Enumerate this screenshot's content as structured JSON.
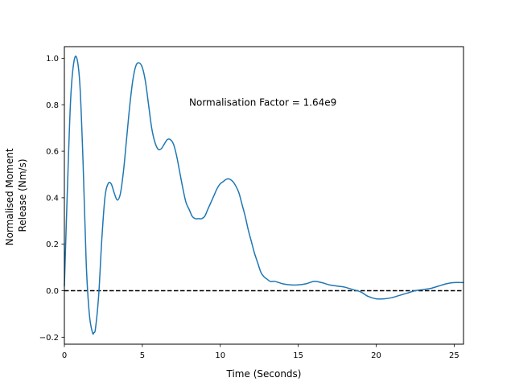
{
  "chart_data": {
    "type": "line",
    "title": "",
    "xlabel": "Time (Seconds)",
    "ylabel_lines": [
      "Normalised Moment",
      "Release (Nm/s)"
    ],
    "xlim": [
      0,
      25.6
    ],
    "ylim": [
      -0.23,
      1.05
    ],
    "xticks": [
      0,
      5,
      10,
      15,
      20,
      25
    ],
    "yticks": [
      -0.2,
      0.0,
      0.2,
      0.4,
      0.6,
      0.8,
      1.0
    ],
    "grid": false,
    "annotation": {
      "text": "Normalisation Factor = 1.64e9",
      "x": 8.0,
      "y": 0.81
    },
    "reference_line": {
      "y": 0.0,
      "style": "dashed",
      "color": "#000000"
    },
    "series": [
      {
        "color": "#1f77b4",
        "x": [
          0,
          0.2,
          0.4,
          0.6,
          0.8,
          1.0,
          1.2,
          1.4,
          1.6,
          1.8,
          1.9,
          2.0,
          2.2,
          2.4,
          2.6,
          2.8,
          3.0,
          3.2,
          3.4,
          3.6,
          3.8,
          4.0,
          4.2,
          4.4,
          4.6,
          4.8,
          5.0,
          5.2,
          5.4,
          5.6,
          5.8,
          6.0,
          6.2,
          6.4,
          6.6,
          6.8,
          7.0,
          7.2,
          7.4,
          7.6,
          7.8,
          8.0,
          8.2,
          8.4,
          8.6,
          8.8,
          9.0,
          9.2,
          9.4,
          9.6,
          9.8,
          10.0,
          10.2,
          10.4,
          10.6,
          10.8,
          11.0,
          11.2,
          11.4,
          11.6,
          11.8,
          12.0,
          12.2,
          12.4,
          12.6,
          12.8,
          13.0,
          13.2,
          13.5,
          14.0,
          14.5,
          15.0,
          15.5,
          16.0,
          16.5,
          17.0,
          17.5,
          18.0,
          18.5,
          19.0,
          19.5,
          20.0,
          20.5,
          21.0,
          21.5,
          22.0,
          22.5,
          23.0,
          23.5,
          24.0,
          24.5,
          25.0,
          25.6
        ],
        "y": [
          0.02,
          0.45,
          0.82,
          0.98,
          1.0,
          0.88,
          0.55,
          0.12,
          -0.1,
          -0.18,
          -0.18,
          -0.16,
          -0.02,
          0.22,
          0.4,
          0.46,
          0.46,
          0.42,
          0.39,
          0.42,
          0.52,
          0.66,
          0.8,
          0.91,
          0.97,
          0.98,
          0.96,
          0.9,
          0.8,
          0.7,
          0.64,
          0.61,
          0.61,
          0.63,
          0.65,
          0.65,
          0.63,
          0.58,
          0.51,
          0.44,
          0.38,
          0.35,
          0.32,
          0.31,
          0.31,
          0.31,
          0.32,
          0.35,
          0.38,
          0.41,
          0.44,
          0.46,
          0.47,
          0.48,
          0.48,
          0.47,
          0.45,
          0.42,
          0.37,
          0.32,
          0.26,
          0.21,
          0.16,
          0.12,
          0.08,
          0.06,
          0.05,
          0.04,
          0.04,
          0.03,
          0.025,
          0.025,
          0.03,
          0.04,
          0.035,
          0.025,
          0.02,
          0.015,
          0.005,
          -0.005,
          -0.025,
          -0.035,
          -0.035,
          -0.03,
          -0.02,
          -0.01,
          0.0,
          0.005,
          0.01,
          0.02,
          0.03,
          0.035,
          0.035
        ]
      }
    ]
  }
}
